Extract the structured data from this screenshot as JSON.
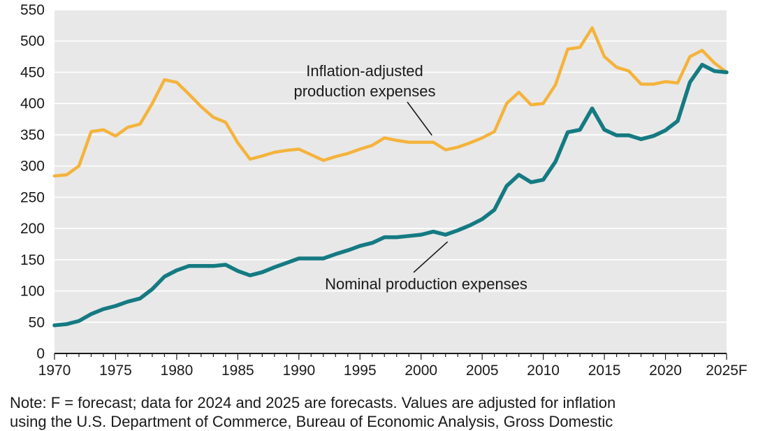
{
  "chart_data": {
    "type": "line",
    "title": "",
    "xlabel": "",
    "ylabel": "",
    "ylim": [
      0,
      550
    ],
    "yticks": [
      0,
      50,
      100,
      150,
      200,
      250,
      300,
      350,
      400,
      450,
      500,
      550
    ],
    "xlim": [
      1970,
      2025
    ],
    "xticks": [
      1970,
      1975,
      1980,
      1985,
      1990,
      1995,
      2000,
      2005,
      2010,
      2015,
      2020,
      2025
    ],
    "xtick_labels": [
      "1970",
      "1975",
      "1980",
      "1985",
      "1990",
      "1995",
      "2000",
      "2005",
      "2010",
      "2015",
      "2020",
      "2025F"
    ],
    "grid": "horizontal",
    "x": [
      1970,
      1971,
      1972,
      1973,
      1974,
      1975,
      1976,
      1977,
      1978,
      1979,
      1980,
      1981,
      1982,
      1983,
      1984,
      1985,
      1986,
      1987,
      1988,
      1989,
      1990,
      1991,
      1992,
      1993,
      1994,
      1995,
      1996,
      1997,
      1998,
      1999,
      2000,
      2001,
      2002,
      2003,
      2004,
      2005,
      2006,
      2007,
      2008,
      2009,
      2010,
      2011,
      2012,
      2013,
      2014,
      2015,
      2016,
      2017,
      2018,
      2019,
      2020,
      2021,
      2022,
      2023,
      2024,
      2025
    ],
    "series": [
      {
        "name": "Inflation-adjusted production expenses",
        "color": "#F5B33C",
        "values": [
          284,
          286,
          300,
          355,
          358,
          348,
          362,
          367,
          400,
          438,
          434,
          415,
          395,
          378,
          370,
          337,
          311,
          316,
          322,
          325,
          327,
          318,
          309,
          315,
          320,
          327,
          333,
          345,
          341,
          338,
          338,
          338,
          326,
          330,
          337,
          345,
          355,
          400,
          418,
          398,
          400,
          430,
          487,
          490,
          521,
          475,
          458,
          452,
          431,
          431,
          435,
          433,
          475,
          485,
          465,
          450
        ]
      },
      {
        "name": "Nominal production expenses",
        "color": "#157A82",
        "values": [
          45,
          47,
          52,
          63,
          71,
          76,
          83,
          88,
          103,
          123,
          133,
          140,
          140,
          140,
          142,
          132,
          125,
          130,
          138,
          145,
          152,
          152,
          152,
          159,
          165,
          172,
          177,
          186,
          186,
          188,
          190,
          195,
          190,
          197,
          205,
          215,
          230,
          268,
          286,
          274,
          278,
          307,
          354,
          358,
          392,
          358,
          349,
          349,
          343,
          348,
          357,
          372,
          434,
          462,
          452,
          450
        ]
      }
    ],
    "annotations": [
      {
        "lines": [
          "Inflation-adjusted",
          "production expenses"
        ],
        "points_to": {
          "series": 0,
          "x": 2001
        }
      },
      {
        "lines": [
          "Nominal production expenses"
        ],
        "points_to": {
          "series": 1,
          "x": 2002
        }
      }
    ]
  },
  "note": {
    "line1": "Note: F = forecast; data for 2024 and 2025 are forecasts. Values are adjusted for inflation",
    "line2": "using the U.S. Department of Commerce, Bureau of Economic Analysis, Gross Domestic"
  }
}
